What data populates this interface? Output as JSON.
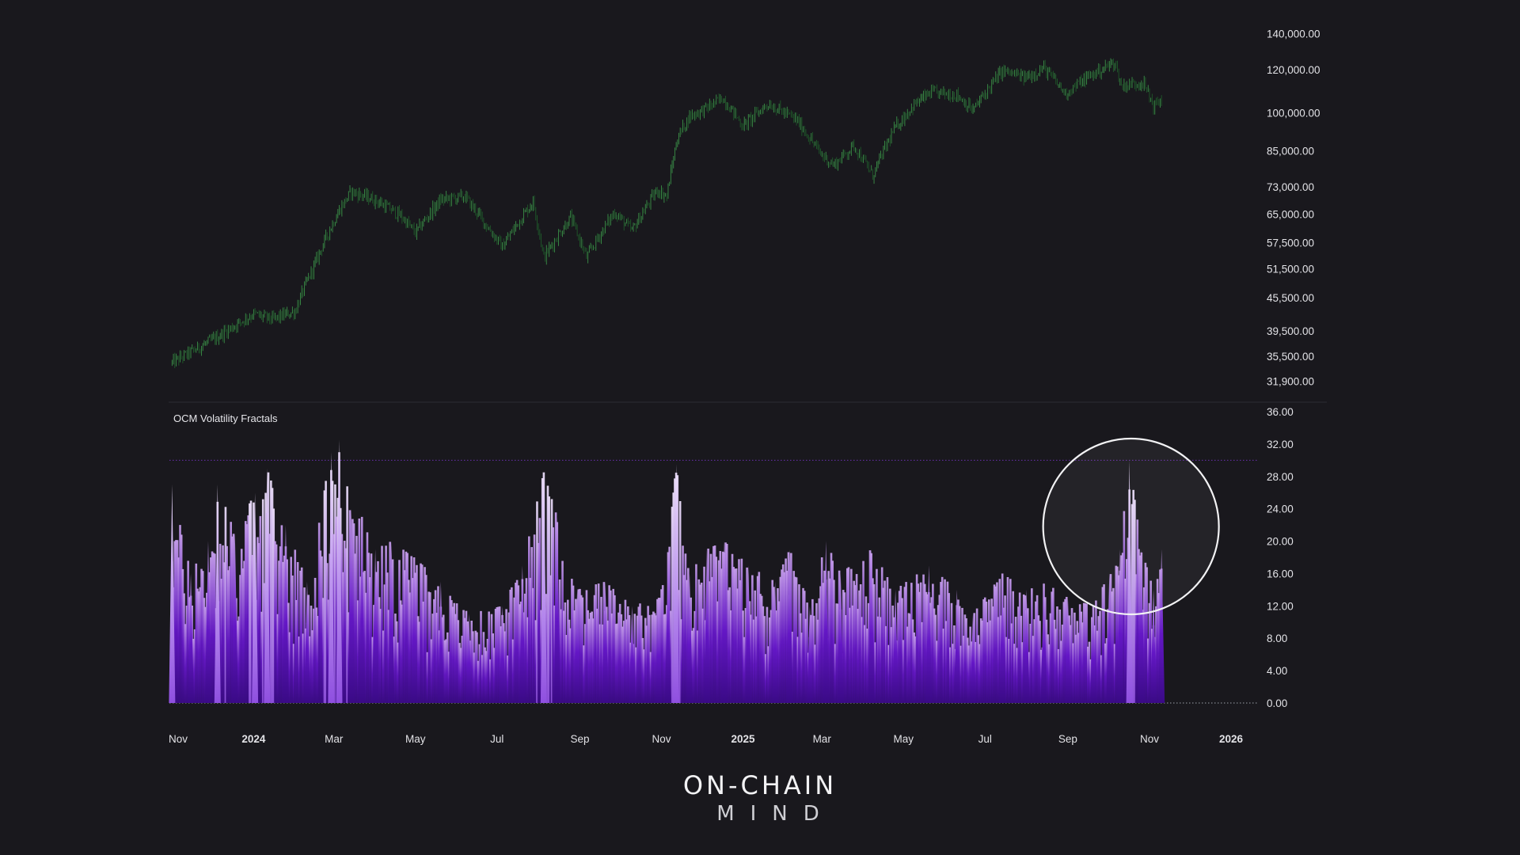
{
  "brand": {
    "line1": "ON-CHAIN",
    "line2": "MIND"
  },
  "colors": {
    "background": "#19181d",
    "candle": "#2e7d3c",
    "volatility_dark": "#4a0fa0",
    "volatility_light": "#d8b8f5",
    "highlight_circle": "#f2f2f4",
    "threshold_line": "#8a3fd1"
  },
  "chart_data": [
    {
      "type": "candlestick",
      "pane": "price",
      "scale": "log",
      "ylim": [
        30500,
        146000
      ],
      "y_ticks": [
        "140,000.00",
        "120,000.00",
        "100,000.00",
        "85,000.00",
        "73,000.00",
        "65,000.00",
        "57,500.00",
        "51,500.00",
        "45,500.00",
        "39,500.00",
        "35,500.00",
        "31,900.00"
      ],
      "x": [
        "2023-11-01",
        "2023-12-01",
        "2024-01-01",
        "2024-01-15",
        "2024-02-01",
        "2024-02-15",
        "2024-03-05",
        "2024-03-14",
        "2024-04-01",
        "2024-04-20",
        "2024-05-01",
        "2024-05-20",
        "2024-06-07",
        "2024-06-25",
        "2024-07-05",
        "2024-07-28",
        "2024-08-05",
        "2024-08-25",
        "2024-09-06",
        "2024-09-27",
        "2024-10-10",
        "2024-10-29",
        "2024-11-05",
        "2024-11-13",
        "2024-11-22",
        "2024-12-05",
        "2024-12-17",
        "2025-01-01",
        "2025-01-20",
        "2025-02-10",
        "2025-02-28",
        "2025-03-10",
        "2025-03-25",
        "2025-04-08",
        "2025-04-25",
        "2025-05-10",
        "2025-05-22",
        "2025-06-10",
        "2025-06-22",
        "2025-07-14",
        "2025-07-31",
        "2025-08-14",
        "2025-08-30",
        "2025-09-15",
        "2025-10-06",
        "2025-10-11",
        "2025-10-27",
        "2025-11-04",
        "2025-11-10"
      ],
      "close": [
        34500,
        38000,
        42500,
        41500,
        43000,
        52000,
        66000,
        71500,
        69000,
        64500,
        60000,
        69000,
        70000,
        61000,
        56500,
        68500,
        54000,
        64000,
        54000,
        65500,
        60500,
        72000,
        70000,
        90000,
        98500,
        102000,
        106500,
        94500,
        104000,
        97000,
        84000,
        80000,
        87000,
        76500,
        94000,
        104000,
        109000,
        108000,
        101000,
        119500,
        116000,
        121000,
        108500,
        116000,
        124000,
        112000,
        114000,
        103000,
        105500
      ]
    },
    {
      "type": "area",
      "pane": "volatility",
      "title": "OCM Volatility Fractals",
      "ylim": [
        0,
        36
      ],
      "y_ticks": [
        "36.00",
        "32.00",
        "28.00",
        "24.00",
        "20.00",
        "16.00",
        "12.00",
        "8.00",
        "4.00",
        "0.00"
      ],
      "threshold": 30,
      "x": [
        "2023-11-01",
        "2023-11-15",
        "2023-11-28",
        "2023-12-05",
        "2023-12-18",
        "2024-01-02",
        "2024-01-11",
        "2024-01-25",
        "2024-02-10",
        "2024-02-28",
        "2024-03-05",
        "2024-03-14",
        "2024-03-22",
        "2024-04-01",
        "2024-04-13",
        "2024-04-30",
        "2024-05-20",
        "2024-06-10",
        "2024-07-05",
        "2024-07-20",
        "2024-08-05",
        "2024-08-15",
        "2024-08-30",
        "2024-09-20",
        "2024-10-10",
        "2024-10-30",
        "2024-11-06",
        "2024-11-12",
        "2024-11-22",
        "2024-12-05",
        "2024-12-18",
        "2025-01-05",
        "2025-01-25",
        "2025-02-05",
        "2025-02-20",
        "2025-03-04",
        "2025-03-15",
        "2025-04-07",
        "2025-04-25",
        "2025-05-20",
        "2025-06-10",
        "2025-06-22",
        "2025-07-14",
        "2025-08-01",
        "2025-08-14",
        "2025-09-01",
        "2025-09-20",
        "2025-10-02",
        "2025-10-10",
        "2025-10-17",
        "2025-10-26",
        "2025-11-04",
        "2025-11-10"
      ],
      "values": [
        27,
        16,
        20,
        27,
        21,
        26,
        29,
        22,
        15,
        31,
        32.5,
        24,
        23,
        19,
        20,
        18,
        15,
        11,
        12,
        17,
        28.5,
        23,
        14,
        15,
        12,
        13,
        19,
        29.5,
        16,
        19,
        20,
        17,
        15,
        19,
        12,
        20,
        16,
        19,
        14,
        17,
        14,
        11,
        16,
        14,
        15,
        13,
        12,
        16,
        19,
        30,
        19,
        14,
        19
      ]
    }
  ],
  "x_axis": {
    "labels": [
      "Nov",
      "2024",
      "Mar",
      "May",
      "Jul",
      "Sep",
      "Nov",
      "2025",
      "Mar",
      "May",
      "Jul",
      "Sep",
      "Nov",
      "2026"
    ],
    "bold": [
      false,
      true,
      false,
      false,
      false,
      false,
      false,
      true,
      false,
      false,
      false,
      false,
      false,
      true
    ],
    "dates": [
      "2023-11-01",
      "2024-01-01",
      "2024-03-01",
      "2024-05-01",
      "2024-07-01",
      "2024-09-01",
      "2024-11-01",
      "2025-01-01",
      "2025-03-01",
      "2025-05-01",
      "2025-07-01",
      "2025-09-01",
      "2025-11-01",
      "2026-01-01"
    ]
  }
}
